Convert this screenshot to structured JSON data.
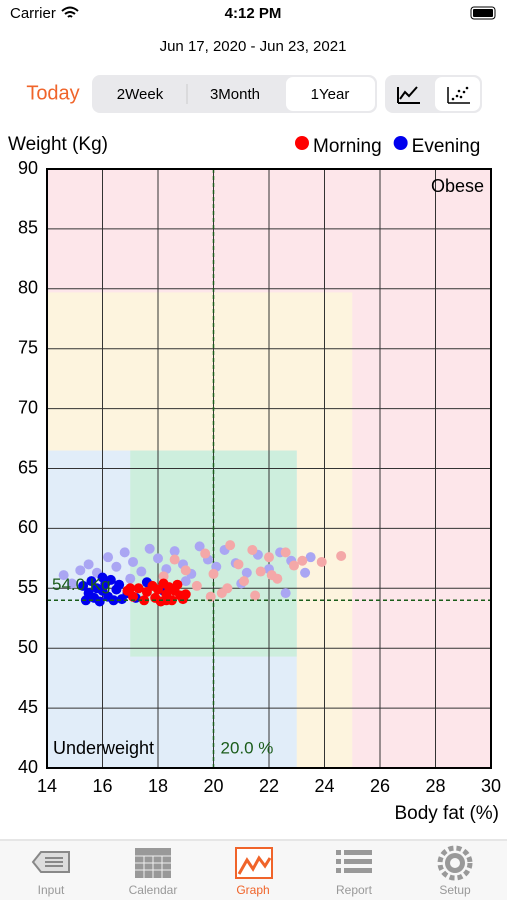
{
  "status": {
    "carrier": "Carrier",
    "time": "4:12 PM"
  },
  "date_range": "Jun 17, 2020 - Jun 23, 2021",
  "today": "Today",
  "segments": [
    "2Week",
    "3Month",
    "1Year"
  ],
  "tabs": [
    "Input",
    "Calendar",
    "Graph",
    "Report",
    "Setup"
  ],
  "chart_data": {
    "type": "scatter",
    "ylabel": "Weight (Kg)",
    "xlabel": "Body fat (%)",
    "xlim": [
      14,
      30
    ],
    "ylim": [
      40,
      90
    ],
    "xticks": [
      14,
      16,
      18,
      20,
      22,
      24,
      26,
      28,
      30
    ],
    "yticks": [
      40,
      45,
      50,
      55,
      60,
      65,
      70,
      75,
      80,
      85,
      90
    ],
    "grid": true,
    "zones": [
      {
        "x": [
          14,
          30
        ],
        "y": [
          40,
          90
        ],
        "color": "#fde6ea"
      },
      {
        "x": [
          14,
          25
        ],
        "y": [
          40,
          79.7
        ],
        "color": "#fdf4de"
      },
      {
        "x": [
          14,
          23
        ],
        "y": [
          40,
          66.5
        ],
        "color": "#e1edf9"
      },
      {
        "x": [
          17,
          23
        ],
        "y": [
          49.3,
          66.5
        ],
        "color": "#cdeedd"
      }
    ],
    "annotations": [
      "Obese",
      "Underweight"
    ],
    "reference_lines": {
      "x": 20,
      "x_label": "20.0 %",
      "y": 54,
      "y_label": "54.0 Kg"
    },
    "series": [
      {
        "color": "#aaa6f3",
        "x": [
          14.6,
          14.9,
          15.2,
          15.5,
          15.8,
          16.2,
          16.5,
          16.8,
          17.1,
          17.4,
          17.7,
          18.0,
          18.3,
          18.6,
          18.9,
          19.2,
          19.5,
          19.8,
          20.1,
          20.4,
          20.8,
          21.2,
          21.6,
          22.0,
          22.4,
          22.8,
          23.3,
          23.5,
          17.0,
          19.0,
          21.0,
          22.6
        ],
        "y": [
          56.1,
          55.4,
          56.5,
          57.0,
          56.3,
          57.6,
          56.8,
          58.0,
          57.2,
          56.4,
          58.3,
          57.5,
          56.6,
          58.1,
          57.0,
          56.2,
          58.5,
          57.4,
          56.8,
          58.2,
          57.1,
          56.3,
          57.8,
          56.6,
          58.0,
          57.3,
          56.3,
          57.6,
          55.8,
          55.6,
          55.4,
          54.6
        ]
      },
      {
        "color": "#f4a8a8",
        "x": [
          18.2,
          18.6,
          19.0,
          19.4,
          19.7,
          20.0,
          20.3,
          20.6,
          20.9,
          21.1,
          21.4,
          21.7,
          22.0,
          22.3,
          22.6,
          22.9,
          23.2,
          23.9,
          24.6,
          19.9,
          21.5,
          22.1,
          20.5
        ],
        "y": [
          56.0,
          57.4,
          56.5,
          55.2,
          57.9,
          56.2,
          54.6,
          58.6,
          57.0,
          55.6,
          58.2,
          56.4,
          57.6,
          55.8,
          58.0,
          56.9,
          57.3,
          57.2,
          57.7,
          54.3,
          54.4,
          56.1,
          55.0
        ]
      },
      {
        "name": "Evening",
        "color": "#0000ee",
        "x": [
          15.3,
          15.5,
          15.6,
          15.7,
          15.8,
          15.9,
          16.0,
          16.1,
          16.2,
          16.3,
          16.4,
          16.5,
          16.6,
          16.7,
          15.4,
          16.0,
          16.9,
          17.6,
          18.2,
          17.2
        ],
        "y": [
          55.2,
          54.6,
          55.6,
          54.2,
          55.0,
          53.9,
          54.8,
          55.4,
          54.3,
          55.7,
          54.0,
          54.9,
          55.3,
          54.1,
          54.0,
          55.9,
          54.6,
          55.5,
          54.8,
          54.2
        ]
      },
      {
        "name": "Morning",
        "color": "#ff0000",
        "x": [
          16.9,
          17.1,
          17.3,
          17.5,
          17.6,
          17.8,
          17.9,
          18.0,
          18.1,
          18.2,
          18.3,
          18.4,
          18.5,
          18.6,
          18.7,
          18.8,
          18.9,
          19.0,
          17.0,
          18.3
        ],
        "y": [
          54.8,
          54.3,
          55.0,
          54.0,
          54.7,
          55.2,
          54.2,
          54.9,
          53.9,
          55.4,
          54.5,
          55.1,
          54.0,
          54.8,
          55.3,
          54.4,
          54.1,
          54.5,
          55.0,
          54.0
        ]
      }
    ]
  }
}
